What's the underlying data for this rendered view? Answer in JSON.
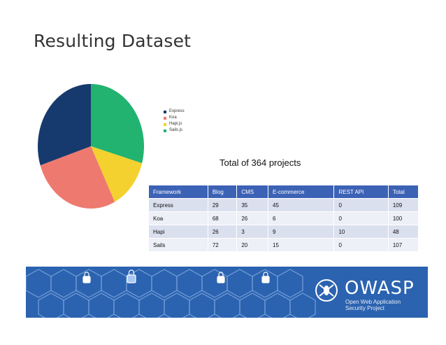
{
  "slide": {
    "title": "Resulting Dataset",
    "total_text": "Total of 364 projects"
  },
  "legend": [
    {
      "label": "Express",
      "color": "#163a6e"
    },
    {
      "label": "Koa",
      "color": "#ee7a6f"
    },
    {
      "label": "Hapi.js",
      "color": "#f5d12f"
    },
    {
      "label": "Sails.js",
      "color": "#21b36f"
    }
  ],
  "chart_data": {
    "type": "pie",
    "labels": [
      "Express",
      "Koa",
      "Hapi.js",
      "Sails.js"
    ],
    "values": [
      109,
      100,
      48,
      107
    ],
    "colors": [
      "#163a6e",
      "#ee7a6f",
      "#f5d12f",
      "#21b36f"
    ]
  },
  "table": {
    "headers": [
      "Framework",
      "Blog",
      "CMS",
      "E-commerce",
      "REST API",
      "Total"
    ],
    "rows": [
      [
        "Express",
        "29",
        "35",
        "45",
        "0",
        "109"
      ],
      [
        "Koa",
        "68",
        "26",
        "6",
        "0",
        "100"
      ],
      [
        "Hapi",
        "26",
        "3",
        "9",
        "10",
        "48"
      ],
      [
        "Sails",
        "72",
        "20",
        "15",
        "0",
        "107"
      ]
    ]
  },
  "banner": {
    "brand": "OWASP",
    "tagline_line1": "Open Web Application",
    "tagline_line2": "Security Project",
    "background_color": "#2b63b0"
  }
}
